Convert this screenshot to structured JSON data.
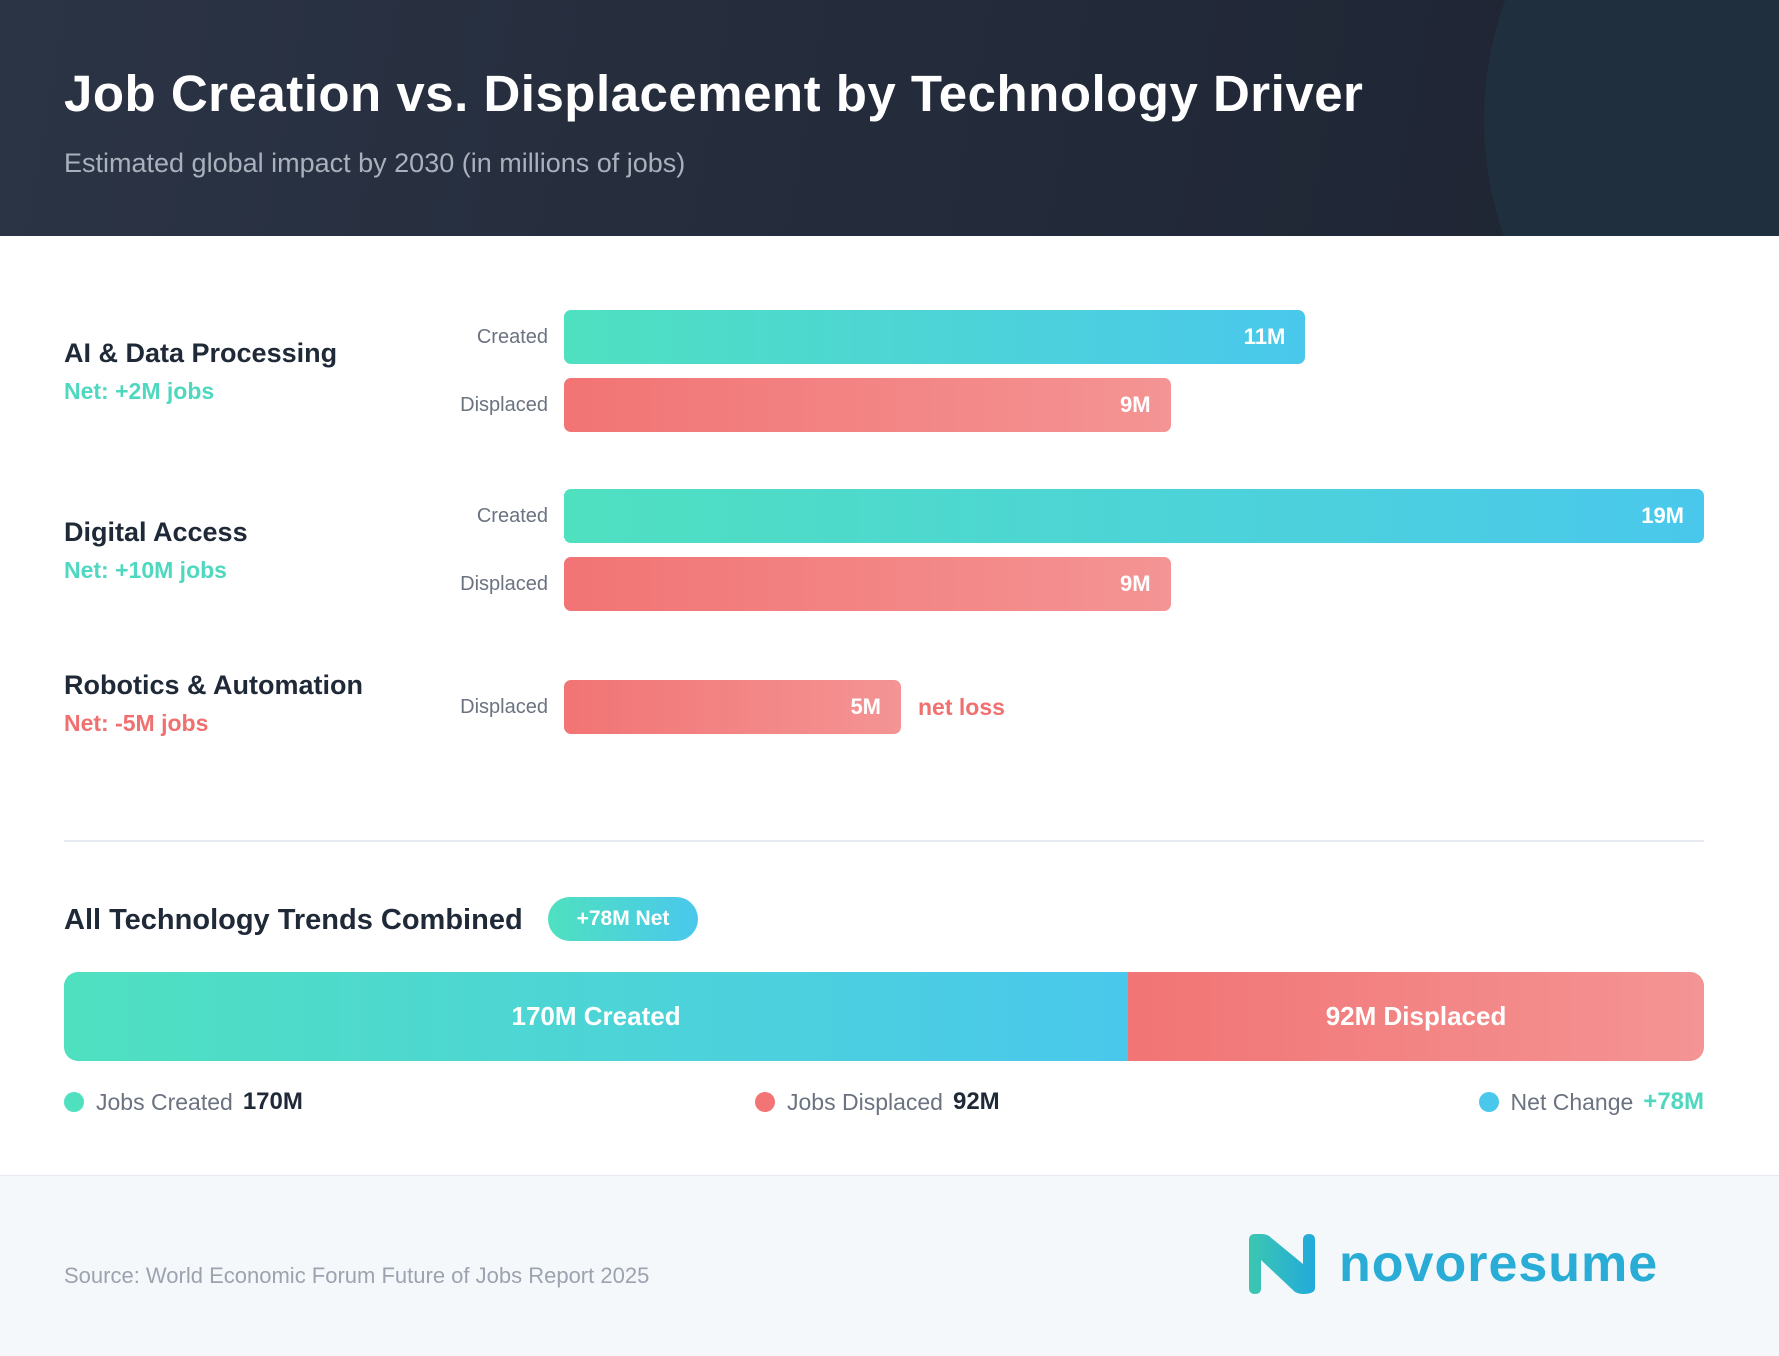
{
  "header": {
    "title": "Job Creation vs. Displacement by Technology Driver",
    "subtitle": "Estimated global impact by 2030 (in millions of jobs)"
  },
  "colors": {
    "created_start": "#4fe0c0",
    "created_end": "#4ac8ec",
    "displaced": "#f27474",
    "positive": "#4fd8c0",
    "negative": "#f07070",
    "brand": "#29acd6"
  },
  "chart_data": {
    "type": "bar",
    "orientation": "horizontal",
    "unit": "millions of jobs",
    "categories": [
      {
        "name": "AI & Data Processing",
        "net_label": "Net: +2M jobs",
        "net": 2,
        "bars": [
          {
            "label": "Created",
            "value": 11,
            "text": "11M"
          },
          {
            "label": "Displaced",
            "value": 9,
            "text": "9M"
          }
        ]
      },
      {
        "name": "Digital Access",
        "net_label": "Net: +10M jobs",
        "net": 10,
        "bars": [
          {
            "label": "Created",
            "value": 19,
            "text": "19M"
          },
          {
            "label": "Displaced",
            "value": 9,
            "text": "9M"
          }
        ]
      },
      {
        "name": "Robotics & Automation",
        "net_label": "Net: -5M jobs",
        "net": -5,
        "bars": [
          {
            "label": "Displaced",
            "value": 5,
            "text": "5M",
            "note": "net loss"
          }
        ]
      }
    ],
    "combined": {
      "title": "All Technology Trends Combined",
      "badge": "+78M Net",
      "created": 170,
      "displaced": 92,
      "created_label": "170M Created",
      "displaced_label": "92M Displaced"
    }
  },
  "legend": [
    {
      "label": "Jobs Created",
      "value": "170M",
      "color": "#4fe0c0"
    },
    {
      "label": "Jobs Displaced",
      "value": "92M",
      "color": "#f27474"
    },
    {
      "label": "Net Change",
      "value": "+78M",
      "color": "#4ac8ec"
    }
  ],
  "footer": {
    "source": "Source: World Economic Forum Future of Jobs Report 2025",
    "logo": "novoresume"
  }
}
